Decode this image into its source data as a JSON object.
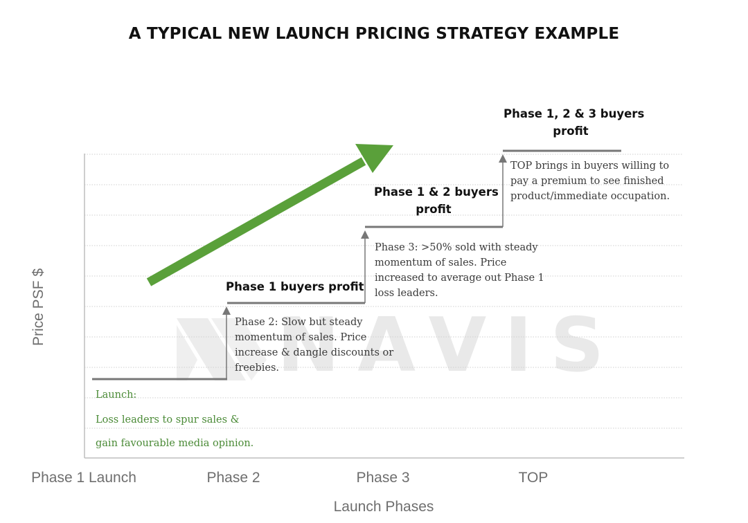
{
  "title": "A TYPICAL NEW LAUNCH PRICING STRATEGY EXAMPLE",
  "axes": {
    "y_label": "Price PSF $",
    "x_label": "Launch Phases",
    "x_ticks": [
      "Phase 1 Launch",
      "Phase 2",
      "Phase 3",
      "TOP"
    ]
  },
  "phase_labels": {
    "phase1_profit": "Phase 1 buyers profit",
    "phase12_profit": [
      "Phase 1 & 2 buyers",
      "profit"
    ],
    "phase123_profit": [
      "Phase 1, 2 & 3 buyers",
      "profit"
    ]
  },
  "notes": {
    "launch": [
      "Launch:",
      "Loss leaders to spur sales &",
      "gain favourable media opinion."
    ],
    "phase2": [
      "Phase 2: Slow but steady",
      "momentum of sales. Price",
      "increase & dangle discounts or",
      "freebies."
    ],
    "phase3": [
      "Phase 3: >50% sold with steady",
      "momentum of sales. Price",
      "increased to average out Phase 1",
      "loss leaders."
    ],
    "top": [
      "TOP brings in buyers willing to",
      "pay a premium to see finished",
      "product/immediate occupation."
    ]
  },
  "watermark": "NAVIS",
  "colors": {
    "arrow_green": "#5aa03a",
    "step_line": "#777777",
    "grid": "#cfcfcf",
    "axis": "#bdbdbd",
    "note_green": "#4a8a36"
  }
}
